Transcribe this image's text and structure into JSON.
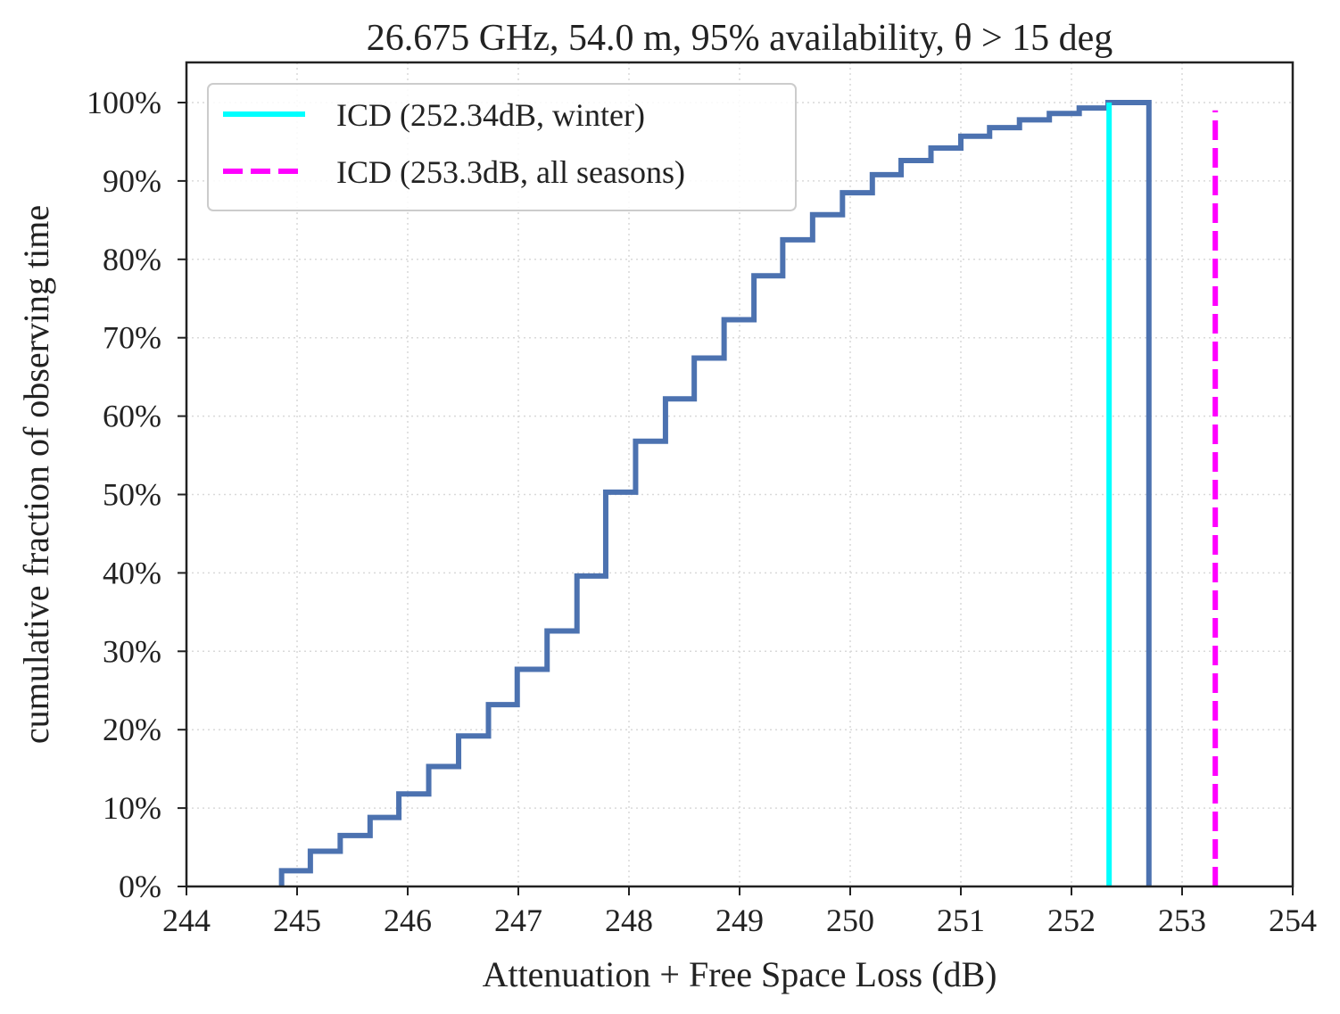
{
  "chart_data": {
    "type": "step",
    "title": "26.675 GHz, 54.0 m, 95% availability, θ > 15 deg",
    "xlabel": "Attenuation + Free Space Loss (dB)",
    "ylabel": "cumulative fraction of observing time",
    "xlim": [
      244,
      254
    ],
    "ylim": [
      0,
      105
    ],
    "xticks": [
      "244",
      "245",
      "246",
      "247",
      "248",
      "249",
      "250",
      "251",
      "252",
      "253",
      "254"
    ],
    "yticks": [
      "0%",
      "10%",
      "20%",
      "30%",
      "40%",
      "50%",
      "60%",
      "70%",
      "80%",
      "90%",
      "100%"
    ],
    "grid": true,
    "legend_position": "top-left",
    "series": [
      {
        "name": "",
        "color": "#4c72b0",
        "style": "step-histogram",
        "bin_edges": [
          244.86,
          245.12,
          245.39,
          245.66,
          245.92,
          246.19,
          246.46,
          246.73,
          246.99,
          247.26,
          247.53,
          247.79,
          248.06,
          248.33,
          248.59,
          248.86,
          249.13,
          249.39,
          249.66,
          249.93,
          250.2,
          250.46,
          250.73,
          251.0,
          251.26,
          251.53,
          251.8,
          252.07,
          252.33,
          252.7
        ],
        "values": [
          2,
          4.5,
          6.5,
          8.8,
          11.8,
          15.3,
          19.2,
          23.2,
          27.7,
          32.6,
          39.6,
          50.3,
          56.8,
          62.2,
          67.4,
          72.3,
          77.9,
          82.5,
          85.7,
          88.5,
          90.8,
          92.6,
          94.2,
          95.7,
          96.8,
          97.8,
          98.6,
          99.3,
          100
        ]
      },
      {
        "name": "ICD (252.34dB, winter)",
        "color": "#00ffff",
        "style": "solid-vline",
        "x": 252.34,
        "y_range": [
          0,
          100
        ]
      },
      {
        "name": "ICD (253.3dB, all seasons)",
        "color": "#ff00ff",
        "style": "dashed-vline",
        "x": 253.3,
        "y_range": [
          0,
          99
        ]
      }
    ]
  }
}
